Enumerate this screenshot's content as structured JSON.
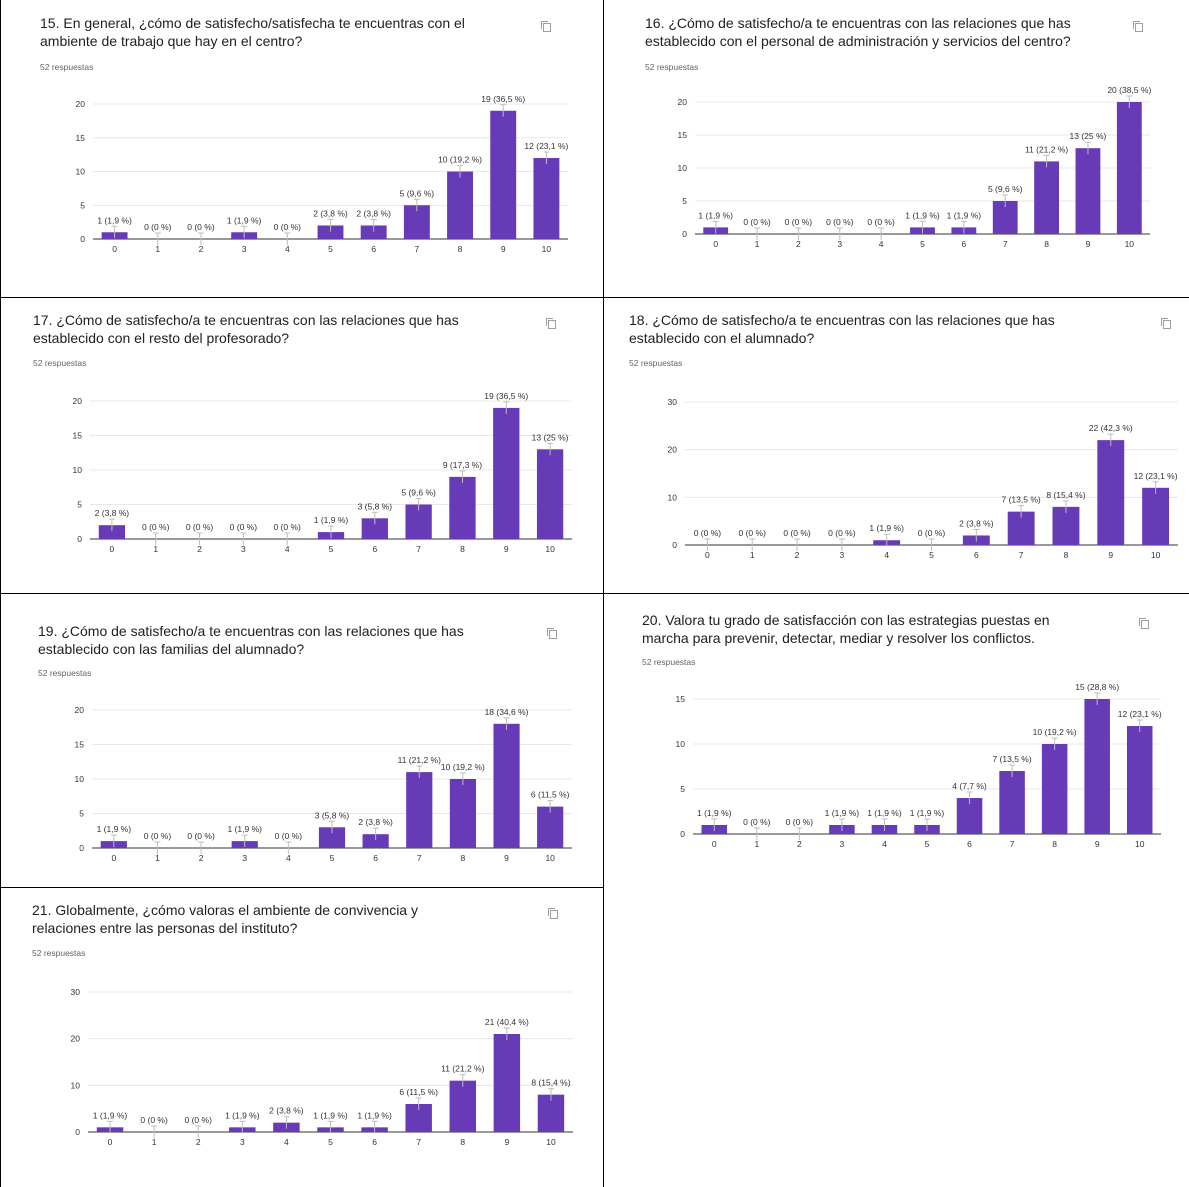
{
  "colors": {
    "bar": "#673ab7",
    "axis": "#333333",
    "grid": "#e0e0e0",
    "text": "#202124",
    "subtext": "#5f6368",
    "whisker": "#bdbdbd"
  },
  "icons": {
    "copy": "copy-icon"
  },
  "chart_data": [
    {
      "type": "bar",
      "title_line1": "15. En general, ¿cómo de satisfecho/satisfecha te encuentras con el",
      "title_line2": "ambiente de trabajo que hay en el centro?",
      "responses": "52 respuestas",
      "categories": [
        "0",
        "1",
        "2",
        "3",
        "4",
        "5",
        "6",
        "7",
        "8",
        "9",
        "10"
      ],
      "values": [
        1,
        0,
        0,
        1,
        0,
        2,
        2,
        5,
        10,
        19,
        12
      ],
      "labels": [
        "1 (1,9 %)",
        "0 (0 %)",
        "0 (0 %)",
        "1 (1,9 %)",
        "0 (0 %)",
        "2 (3,8 %)",
        "2 (3,8 %)",
        "5 (9,6 %)",
        "10 (19,2 %)",
        "19 (36,5 %)",
        "12 (23,1 %)"
      ],
      "yticks": [
        0,
        5,
        10,
        15,
        20
      ],
      "ylim": [
        0,
        20
      ]
    },
    {
      "type": "bar",
      "title_line1": "16. ¿Cómo de satisfecho/a te encuentras con las relaciones que has",
      "title_line2": "establecido con el personal de administración y servicios del centro?",
      "responses": "52 respuestas",
      "categories": [
        "0",
        "1",
        "2",
        "3",
        "4",
        "5",
        "6",
        "7",
        "8",
        "9",
        "10"
      ],
      "values": [
        1,
        0,
        0,
        0,
        0,
        1,
        1,
        5,
        11,
        13,
        20
      ],
      "labels": [
        "1 (1,9 %)",
        "0 (0 %)",
        "0 (0 %)",
        "0 (0 %)",
        "0 (0 %)",
        "1 (1,9 %)",
        "1 (1,9 %)",
        "5 (9,6 %)",
        "11 (21,2 %)",
        "13 (25 %)",
        "20 (38,5 %)"
      ],
      "yticks": [
        0,
        5,
        10,
        15,
        20
      ],
      "ylim": [
        0,
        20
      ]
    },
    {
      "type": "bar",
      "title_line1": "17. ¿Cómo de satisfecho/a te encuentras con las relaciones que has",
      "title_line2": "establecido con el resto del profesorado?",
      "responses": "52 respuestas",
      "categories": [
        "0",
        "1",
        "2",
        "3",
        "4",
        "5",
        "6",
        "7",
        "8",
        "9",
        "10"
      ],
      "values": [
        2,
        0,
        0,
        0,
        0,
        1,
        3,
        5,
        9,
        19,
        13
      ],
      "labels": [
        "2 (3,8 %)",
        "0 (0 %)",
        "0 (0 %)",
        "0 (0 %)",
        "0 (0 %)",
        "1 (1,9 %)",
        "3 (5,8 %)",
        "5 (9,6 %)",
        "9 (17,3 %)",
        "19 (36,5 %)",
        "13 (25 %)"
      ],
      "yticks": [
        0,
        5,
        10,
        15,
        20
      ],
      "ylim": [
        0,
        20
      ]
    },
    {
      "type": "bar",
      "title_line1": "18. ¿Cómo de satisfecho/a te encuentras con las relaciones que has",
      "title_line2": "establecido con el alumnado?",
      "responses": "52 respuestas",
      "categories": [
        "0",
        "1",
        "2",
        "3",
        "4",
        "5",
        "6",
        "7",
        "8",
        "9",
        "10"
      ],
      "values": [
        0,
        0,
        0,
        0,
        1,
        0,
        2,
        7,
        8,
        22,
        12
      ],
      "labels": [
        "0 (0 %)",
        "0 (0 %)",
        "0 (0 %)",
        "0 (0 %)",
        "1 (1,9 %)",
        "0 (0 %)",
        "2 (3,8 %)",
        "7 (13,5 %)",
        "8 (15,4 %)",
        "22 (42,3 %)",
        "12 (23,1 %)"
      ],
      "yticks": [
        0,
        10,
        20,
        30
      ],
      "ylim": [
        0,
        30
      ]
    },
    {
      "type": "bar",
      "title_line1": "19. ¿Cómo de satisfecho/a te encuentras con las relaciones que has",
      "title_line2": "establecido con las familias del alumnado?",
      "responses": "52 respuestas",
      "categories": [
        "0",
        "1",
        "2",
        "3",
        "4",
        "5",
        "6",
        "7",
        "8",
        "9",
        "10"
      ],
      "values": [
        1,
        0,
        0,
        1,
        0,
        3,
        2,
        11,
        10,
        18,
        6
      ],
      "labels": [
        "1 (1,9 %)",
        "0 (0 %)",
        "0 (0 %)",
        "1 (1,9 %)",
        "0 (0 %)",
        "3 (5,8 %)",
        "2 (3,8 %)",
        "11 (21,2 %)",
        "10 (19,2 %)",
        "18 (34,6 %)",
        "6 (11,5 %)"
      ],
      "yticks": [
        0,
        5,
        10,
        15,
        20
      ],
      "ylim": [
        0,
        20
      ]
    },
    {
      "type": "bar",
      "title_line1": "20. Valora tu grado de satisfacción con las estrategias puestas en",
      "title_line2": "marcha para prevenir, detectar, mediar y resolver los conflictos.",
      "responses": "52 respuestas",
      "categories": [
        "0",
        "1",
        "2",
        "3",
        "4",
        "5",
        "6",
        "7",
        "8",
        "9",
        "10"
      ],
      "values": [
        1,
        0,
        0,
        1,
        1,
        1,
        4,
        7,
        10,
        15,
        12
      ],
      "labels": [
        "1 (1,9 %)",
        "0 (0 %)",
        "0 (0 %)",
        "1 (1,9 %)",
        "1 (1,9 %)",
        "1 (1,9 %)",
        "4 (7,7 %)",
        "7 (13,5 %)",
        "10 (19,2 %)",
        "15 (28,8 %)",
        "12 (23,1 %)"
      ],
      "yticks": [
        0,
        5,
        10,
        15
      ],
      "ylim": [
        0,
        15
      ]
    },
    {
      "type": "bar",
      "title_line1": "21. Globalmente, ¿cómo valoras el ambiente de convivencia y",
      "title_line2": "relaciones entre las personas del instituto?",
      "responses": "52 respuestas",
      "categories": [
        "0",
        "1",
        "2",
        "3",
        "4",
        "5",
        "6",
        "7",
        "8",
        "9",
        "10"
      ],
      "values": [
        1,
        0,
        0,
        1,
        2,
        1,
        1,
        6,
        11,
        21,
        8
      ],
      "labels": [
        "1 (1,9 %)",
        "0 (0 %)",
        "0 (0 %)",
        "1 (1,9 %)",
        "2 (3,8 %)",
        "1 (1,9 %)",
        "1 (1,9 %)",
        "6 (11,5 %)",
        "11 (21,2 %)",
        "21 (40,4 %)",
        "8 (15,4 %)"
      ],
      "yticks": [
        0,
        10,
        20,
        30
      ],
      "ylim": [
        0,
        30
      ]
    }
  ]
}
